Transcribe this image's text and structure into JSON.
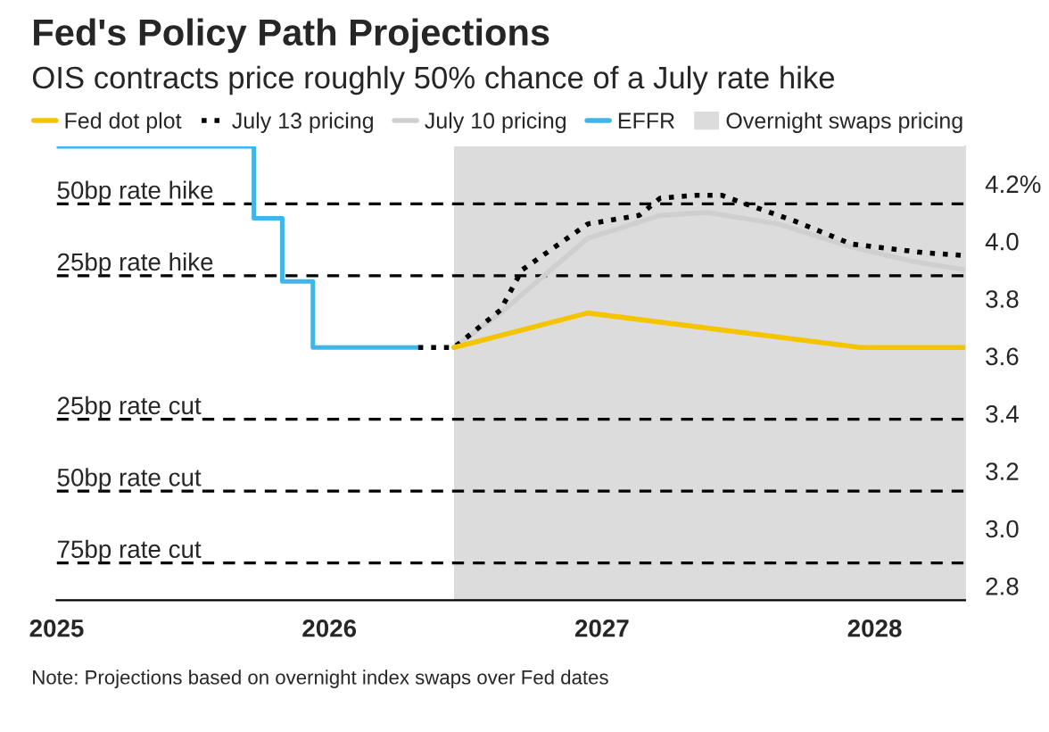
{
  "chart_data": {
    "type": "line",
    "title": "Fed's Policy Path Projections",
    "subtitle": "OIS contracts price roughly 50% chance of a July rate hike",
    "series": [
      {
        "name": "Fed dot plot",
        "color": "#f5c400",
        "x": [
          "2026-06-17",
          "2026-12-13",
          "2027-12-13",
          "2028-05-01"
        ],
        "values": [
          3.63,
          3.75,
          3.63,
          3.63
        ]
      },
      {
        "name": "July 13 pricing",
        "color": "#000000",
        "line_style": "dotted",
        "x": [
          "2026-04-30",
          "2026-06-17",
          "2026-08-18",
          "2026-09-16",
          "2026-12-13",
          "2027-02-20",
          "2027-03-20",
          "2027-05-08",
          "2027-06-10",
          "2027-07-12",
          "2027-09-16",
          "2027-12-01",
          "2028-03-07",
          "2028-05-01"
        ],
        "values": [
          3.63,
          3.63,
          3.76,
          3.9,
          4.06,
          4.09,
          4.15,
          4.16,
          4.16,
          4.13,
          4.07,
          3.99,
          3.96,
          3.95
        ]
      },
      {
        "name": "July 10 pricing",
        "color": "#cfcfcf",
        "x": [
          "2026-06-17",
          "2026-08-18",
          "2026-12-13",
          "2027-03-20",
          "2027-05-22",
          "2027-08-25",
          "2027-12-01",
          "2028-02-20",
          "2028-05-01"
        ],
        "values": [
          3.63,
          3.75,
          4.01,
          4.09,
          4.1,
          4.06,
          3.98,
          3.93,
          3.9
        ]
      },
      {
        "name": "EFFR",
        "color": "#3fb6e8",
        "type": "step",
        "x": [
          "2025-01-01",
          "2025-09-22",
          "2025-10-30",
          "2025-12-10",
          "2026-04-30"
        ],
        "values": [
          4.33,
          4.08,
          3.86,
          3.63,
          3.63
        ]
      }
    ],
    "bands": [
      {
        "axis": "x",
        "from": "2026-06-17",
        "to": "2028-05-01",
        "label": "Overnight swaps pricing",
        "color": "#dcdcdc"
      }
    ],
    "ref_lines": [
      {
        "axis": "y",
        "value": 4.13,
        "label": "50bp rate hike",
        "line_style": "dashed",
        "color": "#000000"
      },
      {
        "axis": "y",
        "value": 3.88,
        "label": "25bp rate hike",
        "line_style": "dashed",
        "color": "#000000"
      },
      {
        "axis": "y",
        "value": 3.38,
        "label": "25bp rate cut",
        "line_style": "dashed",
        "color": "#000000"
      },
      {
        "axis": "y",
        "value": 3.13,
        "label": "50bp rate cut",
        "line_style": "dashed",
        "color": "#000000"
      },
      {
        "axis": "y",
        "value": 2.88,
        "label": "75bp rate cut",
        "line_style": "dashed",
        "color": "#000000"
      }
    ],
    "xlim": [
      "2025-01-01",
      "2028-05-01"
    ],
    "xticks": [
      "2025",
      "2026",
      "2027",
      "2028"
    ],
    "ylim": [
      2.75,
      4.33
    ],
    "yticks": [
      2.8,
      {
        "value": 3.0,
        "label": "3.0"
      },
      3.2,
      3.4,
      3.6,
      3.8,
      {
        "value": 4.0,
        "label": "4.0"
      },
      {
        "value": 4.2,
        "label": "4.2%"
      }
    ],
    "grid": false,
    "legend": "top",
    "annotations": [
      "Note: Projections based on overnight index swaps over Fed dates"
    ]
  }
}
